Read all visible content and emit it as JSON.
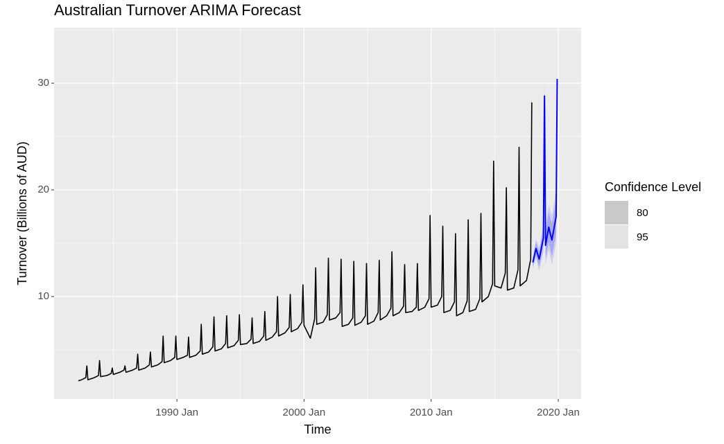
{
  "chart_data": {
    "type": "forecast",
    "title": "Australian Turnover ARIMA Forecast",
    "x_label": "Time",
    "y_label": "Turnover (Billions of AUD)",
    "xlim": [
      1980.34,
      2021.8
    ],
    "ylim": [
      0.4,
      35.2
    ],
    "xticks": [
      {
        "value": 1990,
        "label": "1990 Jan"
      },
      {
        "value": 2000,
        "label": "2000 Jan"
      },
      {
        "value": 2010,
        "label": "2010 Jan"
      },
      {
        "value": 2020,
        "label": "2020 Jan"
      }
    ],
    "x_minor_ticks": [
      1985,
      1995,
      2005,
      2015
    ],
    "yticks": [
      10,
      20,
      30
    ],
    "y_minor_ticks": [
      5,
      15,
      25,
      35
    ],
    "grid": true,
    "series": [
      {
        "color": "#000000",
        "x": [
          1982.25,
          1982.5,
          1982.833,
          1982.917,
          1983,
          1983.5,
          1983.833,
          1983.917,
          1984,
          1984.5,
          1984.833,
          1984.917,
          1985,
          1985.5,
          1985.833,
          1985.917,
          1986,
          1986.5,
          1986.833,
          1986.917,
          1987,
          1987.5,
          1987.833,
          1987.917,
          1988,
          1988.5,
          1988.833,
          1988.917,
          1989,
          1989.5,
          1989.833,
          1989.917,
          1990,
          1990.5,
          1990.833,
          1990.917,
          1991,
          1991.5,
          1991.833,
          1991.917,
          1992,
          1992.5,
          1992.833,
          1992.917,
          1993,
          1993.5,
          1993.833,
          1993.917,
          1994,
          1994.5,
          1994.833,
          1994.917,
          1995,
          1995.5,
          1995.833,
          1995.917,
          1996,
          1996.5,
          1996.833,
          1996.917,
          1997,
          1997.5,
          1997.833,
          1997.917,
          1998,
          1998.5,
          1998.833,
          1998.917,
          1999,
          1999.5,
          1999.833,
          1999.917,
          2000,
          2000.5,
          2000.833,
          2000.917,
          2001,
          2001.5,
          2001.833,
          2001.917,
          2002,
          2002.5,
          2002.833,
          2002.917,
          2003,
          2003.5,
          2003.833,
          2003.917,
          2004,
          2004.5,
          2004.833,
          2004.917,
          2005,
          2005.5,
          2005.833,
          2005.917,
          2006,
          2006.5,
          2006.833,
          2006.917,
          2007,
          2007.5,
          2007.833,
          2007.917,
          2008,
          2008.5,
          2008.833,
          2008.917,
          2009,
          2009.5,
          2009.833,
          2009.917,
          2010,
          2010.5,
          2010.833,
          2010.917,
          2011,
          2011.5,
          2011.833,
          2011.917,
          2012,
          2012.5,
          2012.833,
          2012.917,
          2013,
          2013.5,
          2013.833,
          2013.917,
          2014,
          2014.5,
          2014.833,
          2014.917,
          2015,
          2015.5,
          2015.833,
          2015.917,
          2016,
          2016.5,
          2016.833,
          2016.917,
          2017,
          2017.5,
          2017.833,
          2017.917
        ],
        "values": [
          2.1,
          2.2,
          2.4,
          3.5,
          2.2,
          2.4,
          2.6,
          4.0,
          2.5,
          2.6,
          2.8,
          3.3,
          2.7,
          2.9,
          3.1,
          3.5,
          2.9,
          3.1,
          3.3,
          4.6,
          3.1,
          3.3,
          3.6,
          4.8,
          3.4,
          3.6,
          3.9,
          6.3,
          3.8,
          4.0,
          4.3,
          6.3,
          4.1,
          4.3,
          4.5,
          6.2,
          4.3,
          4.5,
          4.9,
          7.4,
          4.6,
          4.8,
          5.3,
          8.1,
          4.9,
          5.1,
          5.6,
          8.2,
          5.2,
          5.4,
          5.9,
          8.3,
          5.5,
          5.6,
          6.0,
          8.0,
          5.6,
          5.8,
          6.3,
          8.6,
          5.9,
          6.2,
          6.7,
          10.0,
          6.3,
          6.6,
          7.1,
          10.2,
          6.7,
          7.0,
          7.6,
          11.1,
          7.3,
          6.1,
          7.9,
          12.7,
          7.4,
          7.6,
          8.3,
          13.6,
          7.8,
          8.0,
          8.5,
          13.5,
          7.2,
          7.4,
          8.0,
          13.3,
          7.3,
          7.6,
          8.2,
          13.1,
          7.4,
          7.7,
          8.5,
          13.4,
          7.8,
          8.2,
          8.9,
          14.2,
          8.2,
          8.5,
          9.1,
          13.0,
          8.5,
          8.6,
          9.0,
          13.1,
          8.7,
          9.0,
          9.8,
          17.6,
          9.0,
          9.2,
          10.0,
          16.6,
          8.5,
          8.7,
          9.5,
          15.9,
          8.2,
          8.5,
          9.6,
          17.2,
          8.6,
          8.8,
          9.8,
          17.8,
          9.5,
          10.0,
          11.2,
          22.7,
          11.0,
          10.8,
          12.2,
          20.2,
          10.6,
          10.8,
          12.5,
          24.0,
          11.0,
          11.5,
          13.5,
          28.2
        ]
      }
    ],
    "forecast": {
      "color": "#0000ff",
      "x": [
        2018,
        2018.25,
        2018.5,
        2018.833,
        2018.917,
        2019,
        2019.25,
        2019.5,
        2019.833,
        2019.917
      ],
      "values": [
        13.2,
        14.5,
        13.5,
        15.5,
        28.8,
        14.8,
        16.5,
        15.3,
        17.5,
        30.4
      ],
      "legend_title": "Confidence Level",
      "intervals": [
        {
          "name": "95",
          "legend_color": "#e3e3e3",
          "fill": "#0000ff",
          "opacity": 0.12,
          "lower": [
            12.6,
            13.6,
            12.4,
            14.2,
            27.2,
            13.0,
            14.4,
            13.0,
            15.0,
            27.8
          ],
          "upper": [
            13.8,
            15.4,
            14.6,
            16.8,
            30.7,
            16.6,
            18.6,
            17.6,
            20.0,
            30.6
          ]
        },
        {
          "name": "80",
          "legend_color": "#c9c9c9",
          "fill": "#0000ff",
          "opacity": 0.18,
          "lower": [
            12.8,
            13.9,
            12.8,
            14.7,
            27.8,
            13.6,
            15.1,
            13.8,
            15.9,
            28.7
          ],
          "upper": [
            13.6,
            15.1,
            14.2,
            16.3,
            29.8,
            16.0,
            17.9,
            16.8,
            19.1,
            30.5
          ]
        }
      ]
    }
  }
}
